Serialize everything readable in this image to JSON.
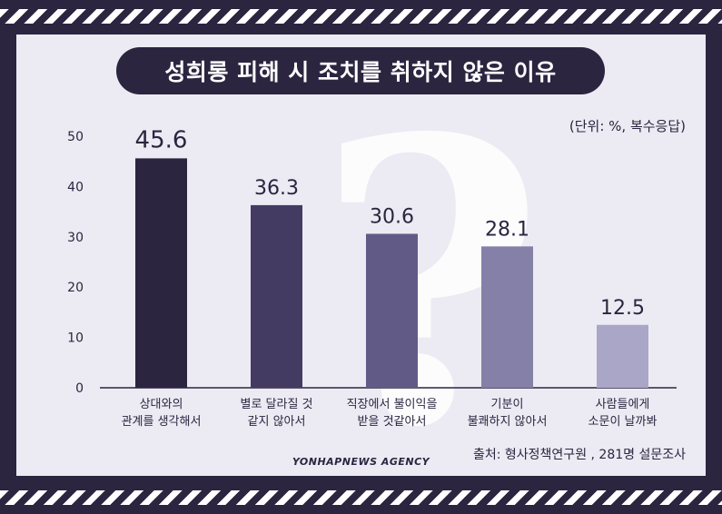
{
  "title": "성희롱 피해 시 조치를 취하지 않은 이유",
  "unit": "(단위: %, 복수응답)",
  "source": "출처: 형사정책연구원 , 281명 설문조사",
  "agency": "YONHAPNEWS AGENCY",
  "chart_data": {
    "type": "bar",
    "categories": [
      [
        "상대와의",
        "관계를 생각해서"
      ],
      [
        "별로 달라질 것",
        "같지 않아서"
      ],
      [
        "직장에서 불이익을",
        "받을 것같아서"
      ],
      [
        "기분이",
        "불쾌하지 않아서"
      ],
      [
        "사람들에게",
        "소문이 날까봐"
      ]
    ],
    "values": [
      45.6,
      36.3,
      30.6,
      28.1,
      12.5
    ],
    "value_labels": [
      "45.6",
      "36.3",
      "30.6",
      "28.1",
      "12.5"
    ],
    "y_ticks": [
      "0",
      "10",
      "20",
      "30",
      "40",
      "50"
    ],
    "ylim": [
      0,
      50
    ],
    "grid": false,
    "bar_colors": [
      "#2b2540",
      "#443b63",
      "#625a86",
      "#8580a8",
      "#aaa6c8"
    ],
    "label_color": "#2b2540",
    "title": "성희롱 피해 시 조치를 취하지 않은 이유",
    "xlabel": "",
    "ylabel": ""
  }
}
